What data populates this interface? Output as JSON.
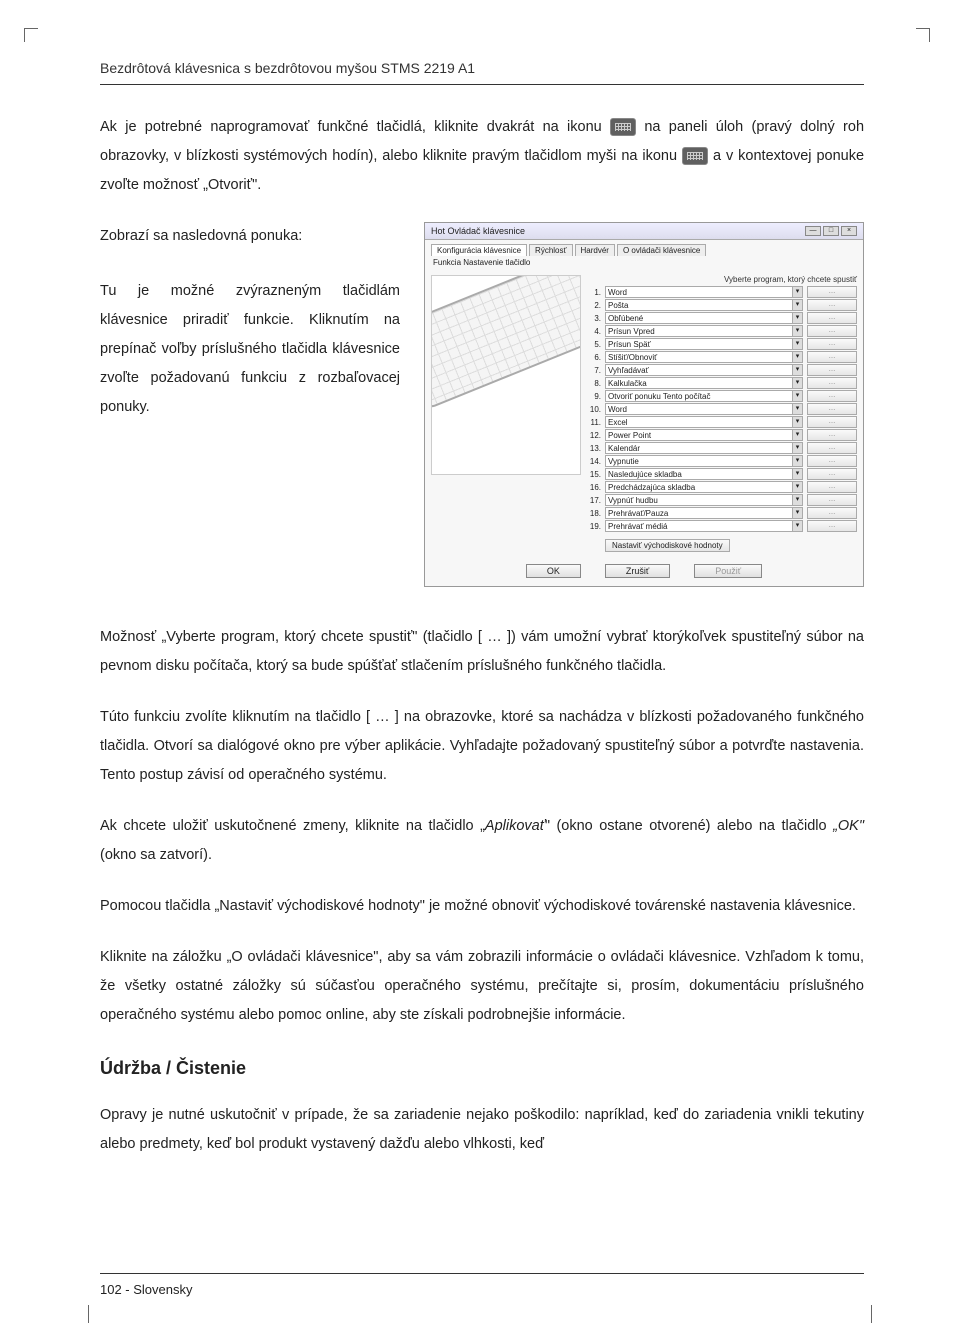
{
  "header": "Bezdrôtová klávesnica s bezdrôtovou myšou STMS 2219 A1",
  "p1_a": "Ak je potrebné naprogramovať funkčné tlačidlá, kliknite dvakrát na ikonu ",
  "p1_b": " na paneli úloh (pravý dolný roh obrazovky, v blízkosti systémových hodín), alebo kliknite pravým tlačidlom myši na ikonu ",
  "p1_c": " a v kontextovej ponuke zvoľte možnosť „Otvoriť\".",
  "p2": "Zobrazí sa nasledovná ponuka:",
  "p3": "Tu je možné zvýrazneným tlačidlám klávesnice priradiť funkcie. Kliknutím na prepínač voľby príslušného tlačidla klávesnice zvoľte požadovanú funkciu z rozbaľovacej ponuky.",
  "p4": "Možnosť „Vyberte program, ktorý chcete spustiť\" (tlačidlo [ … ]) vám umožní vybrať ktorýkoľvek spustiteľný súbor na pevnom disku počítača, ktorý sa bude spúšťať stlačením príslušného funkčného tlačidla.",
  "p5": "Túto funkciu zvolíte kliknutím na tlačidlo [ … ] na obrazovke, ktoré sa nachádza v blízkosti požadovaného funkčného tlačidla. Otvorí sa dialógové okno pre výber aplikácie. Vyhľadajte požadovaný spustiteľný súbor a potvrďte nastavenia. Tento postup závisí od operačného systému.",
  "p6_a": "Ak chcete uložiť uskutočnené zmeny, kliknite na tlačidlo „",
  "p6_apply": "Aplikovať",
  "p6_b": "\" (okno ostane otvorené) alebo na tlačidlo ",
  "p6_ok": "„OK\"",
  "p6_c": " (okno sa zatvorí).",
  "p7": "Pomocou tlačidla „Nastaviť východiskové hodnoty\" je možné obnoviť východiskové továrenské nastavenia klávesnice.",
  "p8": "Kliknite na záložku „O ovládači klávesnice\", aby sa vám zobrazili informácie o ovládači klávesnice. Vzhľadom k tomu, že všetky ostatné záložky sú súčasťou operačného systému, prečítajte si, prosím, dokumentáciu príslušného operačného systému alebo pomoc online, aby ste získali podrobnejšie informácie.",
  "section_title": "Údržba / Čistenie",
  "p9": "Opravy je nutné uskutočniť v prípade, že sa zariadenie nejako poškodilo: napríklad, keď do zariadenia vnikli tekutiny alebo predmety, keď bol produkt vystavený dažďu alebo vlhkosti, keď",
  "footer": "102  -  Slovensky",
  "dialog": {
    "title": "Hot Ovládač klávesnice",
    "tabs": [
      "Konfigurácia klávesnice",
      "Rýchlosť",
      "Hardvér",
      "O ovládači klávesnice"
    ],
    "panel_label": "Funkcia Nastavenie tlačidlo",
    "col_header": "Vyberte program, ktorý chcete spustiť",
    "rows": [
      {
        "n": "1.",
        "label": "Word"
      },
      {
        "n": "2.",
        "label": "Pošta"
      },
      {
        "n": "3.",
        "label": "Obľúbené"
      },
      {
        "n": "4.",
        "label": "Prísun Vpred"
      },
      {
        "n": "5.",
        "label": "Prísun Späť"
      },
      {
        "n": "6.",
        "label": "Stíšiť/Obnoviť"
      },
      {
        "n": "7.",
        "label": "Vyhľadávať"
      },
      {
        "n": "8.",
        "label": "Kalkulačka"
      },
      {
        "n": "9.",
        "label": "Otvoriť ponuku Tento počítač"
      },
      {
        "n": "10.",
        "label": "Word"
      },
      {
        "n": "11.",
        "label": "Excel"
      },
      {
        "n": "12.",
        "label": "Power Point"
      },
      {
        "n": "13.",
        "label": "Kalendár"
      },
      {
        "n": "14.",
        "label": "Vypnutie"
      },
      {
        "n": "15.",
        "label": "Nasledujúce skladba"
      },
      {
        "n": "16.",
        "label": "Predchádzajúca skladba"
      },
      {
        "n": "17.",
        "label": "Vypnúť hudbu"
      },
      {
        "n": "18.",
        "label": "Prehrávať/Pauza"
      },
      {
        "n": "19.",
        "label": "Prehrávať médiá"
      }
    ],
    "row_btn": "…",
    "default_btn": "Nastaviť východiskové hodnoty",
    "ok": "OK",
    "cancel": "Zrušiť",
    "apply": "Použiť"
  }
}
